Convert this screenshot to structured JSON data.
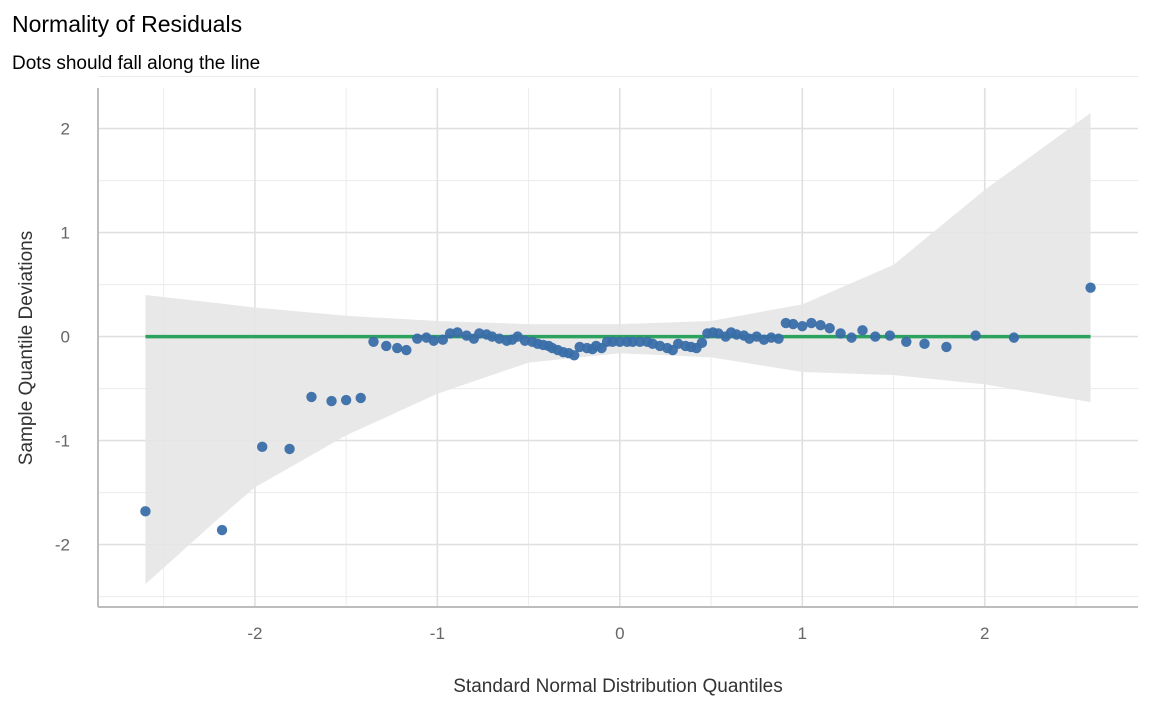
{
  "chart_data": {
    "type": "scatter",
    "title": "Normality of Residuals",
    "subtitle": "Dots should fall along the line",
    "xlabel": "Standard Normal Distribution Quantiles",
    "ylabel": "Sample Quantile Deviations",
    "xlim": [
      -2.86,
      2.84
    ],
    "ylim": [
      -2.6,
      2.39
    ],
    "xticks": [
      -2,
      -1,
      0,
      1,
      2
    ],
    "yticks": [
      -2,
      -1,
      0,
      1,
      2
    ],
    "xtick_labels": [
      "-2",
      "-1",
      "0",
      "1",
      "2"
    ],
    "ytick_labels": [
      "-2",
      "-1",
      "0",
      "1",
      "2"
    ],
    "grid": true,
    "colors": {
      "points": "#3a6ea8",
      "reference_line": "#2ca25f",
      "band": "#e6e6e6",
      "grid": "#e0e0e0",
      "axis": "#bdbdbd"
    },
    "reference_line": {
      "x": [
        -2.6,
        2.58
      ],
      "y": [
        0,
        0
      ]
    },
    "confidence_band": {
      "x": [
        -2.6,
        -2.2,
        -2.0,
        -1.5,
        -1.0,
        -0.5,
        0.0,
        0.5,
        1.0,
        1.5,
        2.0,
        2.58
      ],
      "upper": [
        0.4,
        0.32,
        0.28,
        0.2,
        0.15,
        0.12,
        0.12,
        0.15,
        0.31,
        0.69,
        1.41,
        2.15
      ],
      "lower": [
        -2.38,
        -1.75,
        -1.45,
        -0.95,
        -0.55,
        -0.25,
        -0.16,
        -0.2,
        -0.34,
        -0.37,
        -0.46,
        -0.63
      ]
    },
    "points": {
      "x": [
        -2.6,
        -2.18,
        -1.96,
        -1.81,
        -1.69,
        -1.58,
        -1.5,
        -1.42,
        -1.35,
        -1.28,
        -1.22,
        -1.17,
        -1.11,
        -1.06,
        -1.02,
        -0.97,
        -0.93,
        -0.89,
        -0.84,
        -0.8,
        -0.77,
        -0.73,
        -0.7,
        -0.66,
        -0.62,
        -0.59,
        -0.56,
        -0.52,
        -0.48,
        -0.45,
        -0.42,
        -0.39,
        -0.37,
        -0.34,
        -0.31,
        -0.28,
        -0.25,
        -0.22,
        -0.18,
        -0.15,
        -0.13,
        -0.1,
        -0.07,
        -0.04,
        0.0,
        0.04,
        0.07,
        0.11,
        0.15,
        0.18,
        0.22,
        0.26,
        0.29,
        0.32,
        0.36,
        0.39,
        0.42,
        0.45,
        0.48,
        0.51,
        0.54,
        0.58,
        0.61,
        0.64,
        0.68,
        0.71,
        0.75,
        0.79,
        0.83,
        0.87,
        0.91,
        0.95,
        1.0,
        1.05,
        1.1,
        1.15,
        1.21,
        1.27,
        1.33,
        1.4,
        1.48,
        1.57,
        1.67,
        1.79,
        1.95,
        2.16,
        2.58
      ],
      "y": [
        -1.68,
        -1.86,
        -1.06,
        -1.08,
        -0.58,
        -0.62,
        -0.61,
        -0.59,
        -0.05,
        -0.09,
        -0.11,
        -0.13,
        -0.02,
        -0.01,
        -0.04,
        -0.03,
        0.03,
        0.04,
        0.01,
        -0.02,
        0.03,
        0.02,
        0.0,
        -0.02,
        -0.04,
        -0.03,
        0.0,
        -0.04,
        -0.05,
        -0.07,
        -0.08,
        -0.09,
        -0.11,
        -0.13,
        -0.15,
        -0.16,
        -0.18,
        -0.1,
        -0.11,
        -0.12,
        -0.09,
        -0.11,
        -0.05,
        -0.05,
        -0.05,
        -0.05,
        -0.05,
        -0.05,
        -0.05,
        -0.07,
        -0.09,
        -0.11,
        -0.13,
        -0.07,
        -0.09,
        -0.1,
        -0.11,
        -0.06,
        0.03,
        0.04,
        0.03,
        0.0,
        0.04,
        0.02,
        0.01,
        -0.02,
        0.0,
        -0.03,
        -0.01,
        -0.02,
        0.13,
        0.12,
        0.1,
        0.13,
        0.11,
        0.08,
        0.03,
        -0.01,
        0.06,
        0.0,
        0.01,
        -0.05,
        -0.07,
        -0.1,
        0.01,
        -0.01,
        0.47
      ]
    }
  }
}
